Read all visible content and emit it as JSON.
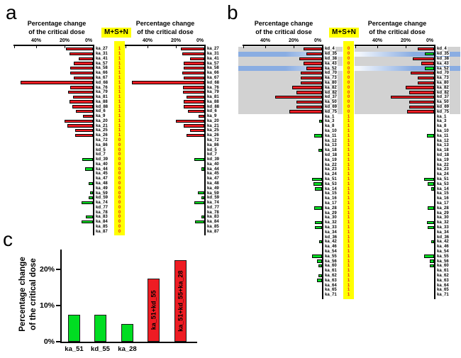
{
  "colors": {
    "red_bar": "#ee1c23",
    "green_bar": "#00dd22",
    "highlight_yellow": "#ffff00",
    "gray_band": "#d2d2d2",
    "blue_band": "#8aade2",
    "msn_text": "#e8221a",
    "axis": "#000000"
  },
  "figure": {
    "panels": {
      "a": "a",
      "b": "b",
      "c": "c"
    },
    "axis_title_line1": "Percentage change",
    "axis_title_line2": "of the critical dose",
    "msn_header": "M+S+N"
  },
  "chart_data": [
    {
      "id": "panel_a",
      "type": "bar",
      "orientation": "horizontal_paired",
      "unit": "%",
      "x_axis_ticks": [
        "40%",
        "20%",
        "0%"
      ],
      "x_range": [
        0,
        56
      ],
      "columns": [
        "label",
        "M+S+N",
        "left_value",
        "left_color",
        "right_value",
        "right_color"
      ],
      "rows": [
        [
          "ka_27",
          1,
          19,
          "red",
          16.5,
          "red"
        ],
        [
          "ka_31",
          1,
          16.5,
          "red",
          15.5,
          "red"
        ],
        [
          "ka_41",
          1,
          10,
          "red",
          10,
          "red"
        ],
        [
          "ka_57",
          1,
          13.5,
          "red",
          14.5,
          "red"
        ],
        [
          "ka_58",
          1,
          16,
          "red",
          14.5,
          "red"
        ],
        [
          "ka_66",
          1,
          16,
          "red",
          15.5,
          "red"
        ],
        [
          "ka_67",
          1,
          13.5,
          "red",
          14.5,
          "red"
        ],
        [
          "kd_68",
          1,
          51,
          "red",
          51,
          "red"
        ],
        [
          "ka_76",
          1,
          16,
          "red",
          15,
          "red"
        ],
        [
          "ka_79",
          1,
          17.5,
          "red",
          15,
          "red"
        ],
        [
          "ka_81",
          1,
          14,
          "red",
          12.5,
          "red"
        ],
        [
          "ka_88",
          1,
          16.5,
          "red",
          14.5,
          "red"
        ],
        [
          "kd_88",
          1,
          14.5,
          "red",
          14.5,
          "red"
        ],
        [
          "kd_6",
          1,
          12,
          "red",
          11.5,
          "red"
        ],
        [
          "ka_9",
          1,
          7,
          "red",
          4,
          "red"
        ],
        [
          "ka_20",
          1,
          20,
          "red",
          20,
          "red"
        ],
        [
          "ka_21",
          1,
          18,
          "red",
          14.5,
          "red"
        ],
        [
          "ka_25",
          1,
          12.5,
          "red",
          10,
          "red"
        ],
        [
          "ka_26",
          1,
          12.5,
          "red",
          12.5,
          "red"
        ],
        [
          "ka_72",
          0,
          0,
          null,
          0,
          null
        ],
        [
          "ka_86",
          0,
          0,
          null,
          0,
          null
        ],
        [
          "kd_5",
          0,
          0,
          null,
          0,
          null
        ],
        [
          "kd_7",
          0,
          0,
          null,
          0,
          null
        ],
        [
          "kd_39",
          0,
          7.3,
          "green",
          7,
          "green"
        ],
        [
          "ka_40",
          0,
          0,
          null,
          0,
          null
        ],
        [
          "ka_44",
          0,
          5.3,
          "green",
          2.2,
          "green"
        ],
        [
          "ka_45",
          0,
          0,
          null,
          0,
          null
        ],
        [
          "ka_47",
          0,
          0,
          null,
          0,
          null
        ],
        [
          "ka_48",
          0,
          2.8,
          "green",
          0,
          null
        ],
        [
          "ka_49",
          0,
          0,
          null,
          0,
          null
        ],
        [
          "ka_59",
          0,
          2,
          "green",
          4.5,
          "green"
        ],
        [
          "kd_59",
          0,
          2.8,
          "green",
          2.2,
          "green"
        ],
        [
          "ka_74",
          0,
          7.8,
          "green",
          7,
          "green"
        ],
        [
          "kd_77",
          0,
          0,
          null,
          0,
          null
        ],
        [
          "ka_78",
          0,
          0,
          null,
          0,
          null
        ],
        [
          "ka_83",
          0,
          4.8,
          "green",
          2.2,
          "green"
        ],
        [
          "ka_84",
          0,
          7.8,
          "green",
          6.5,
          "green"
        ],
        [
          "ka_85",
          0,
          0,
          null,
          0,
          null
        ],
        [
          "ka_87",
          0,
          0,
          null,
          0,
          null
        ]
      ]
    },
    {
      "id": "panel_b",
      "type": "bar",
      "orientation": "horizontal_paired",
      "unit": "%",
      "x_axis_ticks": [
        "40%",
        "20%",
        "0%"
      ],
      "x_range": [
        0,
        56
      ],
      "columns": [
        "label",
        "M+S+N",
        "left_value",
        "left_color",
        "right_value",
        "right_color",
        "row_highlight"
      ],
      "rows": [
        [
          "kd_4",
          0,
          13,
          "red",
          11.5,
          "red",
          "gray"
        ],
        [
          "kd_35",
          0,
          11,
          "red",
          6.5,
          "green",
          "blue"
        ],
        [
          "kd_38",
          0,
          16,
          "red",
          15,
          "red",
          "gray"
        ],
        [
          "ka_43",
          0,
          13,
          "red",
          9,
          "red",
          "gray"
        ],
        [
          "ka_52",
          0,
          11,
          "red",
          6.5,
          "green",
          "blue"
        ],
        [
          "kd_70",
          0,
          15,
          "red",
          16.5,
          "red",
          "gray"
        ],
        [
          "ka_73",
          0,
          15,
          "red",
          11.5,
          "red",
          "gray"
        ],
        [
          "ka_80",
          0,
          15,
          "red",
          11.5,
          "red",
          "gray"
        ],
        [
          "ka_82",
          0,
          21,
          "red",
          20,
          "red",
          "gray"
        ],
        [
          "kd_82",
          0,
          18,
          "red",
          17.5,
          "red",
          "gray"
        ],
        [
          "kd_37",
          0,
          33,
          "red",
          30.5,
          "red",
          "gray"
        ],
        [
          "ka_50",
          0,
          18,
          "red",
          17.5,
          "red",
          "gray"
        ],
        [
          "kd_69",
          0,
          18,
          "red",
          17.5,
          "red",
          "gray"
        ],
        [
          "kd_75",
          0,
          23,
          "red",
          19,
          "red",
          "gray"
        ],
        [
          "ka_1",
          1,
          0,
          null,
          0,
          null,
          null
        ],
        [
          "ka_3",
          1,
          2,
          "green",
          0,
          null,
          null
        ],
        [
          "ka_8",
          1,
          0,
          null,
          0,
          null,
          null
        ],
        [
          "ka_10",
          1,
          0,
          null,
          0,
          null,
          null
        ],
        [
          "ka_11",
          1,
          5.5,
          "green",
          5,
          "green",
          null
        ],
        [
          "ka_12",
          1,
          0,
          null,
          0,
          null,
          null
        ],
        [
          "ka_13",
          1,
          0,
          null,
          0,
          null,
          null
        ],
        [
          "ka_18",
          1,
          2.5,
          "green",
          0,
          null,
          null
        ],
        [
          "kd_18",
          1,
          0,
          null,
          0,
          null,
          null
        ],
        [
          "ka_19",
          1,
          0,
          null,
          0,
          null,
          null
        ],
        [
          "ka_22",
          1,
          0,
          null,
          0,
          null,
          null
        ],
        [
          "ka_23",
          1,
          0,
          null,
          0,
          null,
          null
        ],
        [
          "ka_24",
          1,
          0,
          null,
          0,
          null,
          null
        ],
        [
          "ka_51",
          1,
          7.2,
          "green",
          7.2,
          "green",
          null
        ],
        [
          "ka_53",
          1,
          6.2,
          "green",
          4.6,
          "green",
          null
        ],
        [
          "ka_14",
          1,
          5,
          "green",
          2,
          "green",
          null
        ],
        [
          "ka_15",
          1,
          0,
          null,
          0,
          null,
          null
        ],
        [
          "ka_16",
          1,
          0,
          null,
          0,
          null,
          null
        ],
        [
          "ka_17",
          1,
          0,
          null,
          0,
          null,
          null
        ],
        [
          "ka_28",
          1,
          5.5,
          "green",
          4.6,
          "green",
          null
        ],
        [
          "ka_29",
          1,
          0,
          null,
          0,
          null,
          null
        ],
        [
          "ka_30",
          1,
          0,
          null,
          0,
          null,
          null
        ],
        [
          "ka_32",
          1,
          5,
          "green",
          5,
          "green",
          null
        ],
        [
          "ka_33",
          1,
          5,
          "green",
          4.6,
          "green",
          null
        ],
        [
          "ka_34",
          1,
          0,
          null,
          0,
          null,
          null
        ],
        [
          "kd_36",
          1,
          0,
          null,
          0,
          null,
          null
        ],
        [
          "ka_42",
          1,
          2.2,
          "green",
          2.2,
          "green",
          null
        ],
        [
          "ka_46",
          1,
          0,
          null,
          0,
          null,
          null
        ],
        [
          "ka_54",
          1,
          0,
          null,
          0,
          null,
          null
        ],
        [
          "ka_55",
          1,
          7.2,
          "green",
          7,
          "green",
          null
        ],
        [
          "ka_56",
          1,
          3.4,
          "green",
          3,
          "green",
          null
        ],
        [
          "ka_60",
          1,
          2.7,
          "green",
          3,
          "green",
          null
        ],
        [
          "ka_61",
          1,
          0,
          null,
          0,
          null,
          null
        ],
        [
          "ka_62",
          1,
          2.7,
          "green",
          0,
          null,
          null
        ],
        [
          "ka_63",
          1,
          3.4,
          "green",
          0,
          null,
          null
        ],
        [
          "ka_64",
          1,
          0,
          null,
          0,
          null,
          null
        ],
        [
          "ka_65",
          1,
          0,
          null,
          0,
          null,
          null
        ],
        [
          "ka_71",
          1,
          0,
          null,
          0,
          null,
          null
        ]
      ]
    },
    {
      "id": "panel_c",
      "type": "bar",
      "orientation": "vertical",
      "ylabel_line1": "Percentage change",
      "ylabel_line2": "of the critical dose",
      "yticks": [
        "0%",
        "10%",
        "20%"
      ],
      "ylim": [
        0,
        25
      ],
      "categories": [
        "ka_51",
        "kd_55",
        "ka_28",
        "ka_51+kd_55",
        "ka_51+kd_55+ka_28"
      ],
      "values": [
        7.5,
        7.5,
        5,
        17.5,
        22.5
      ],
      "bar_colors": [
        "green",
        "green",
        "green",
        "red",
        "red"
      ],
      "label_placement": [
        "below",
        "below",
        "below",
        "inside",
        "inside"
      ]
    }
  ]
}
